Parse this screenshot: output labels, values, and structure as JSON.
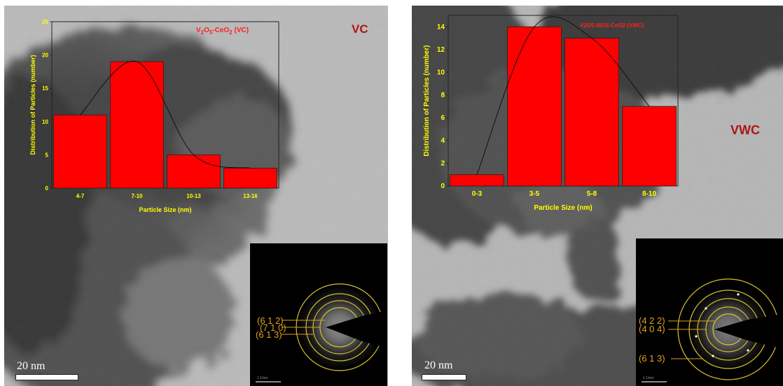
{
  "chart_data": [
    {
      "type": "bar",
      "title": "V2O5-CeO2 (VC)",
      "title_parts": {
        "base": "V",
        "s1": "2",
        "mid": "O",
        "s2": "5",
        "tail": "-CeO",
        "s3": "2",
        "end": " (VC)"
      },
      "categories": [
        "4-7",
        "7-10",
        "10-13",
        "13-16"
      ],
      "values": [
        11,
        19,
        5,
        3
      ],
      "xlabel": "Particle Size (nm)",
      "ylabel": "Distribution of Particles (number)",
      "ylim": [
        0,
        25
      ],
      "yticks": [
        "0",
        "5",
        "10",
        "15",
        "20",
        "25"
      ],
      "fit_curve": "gaussian",
      "bar_color": "#ff0000",
      "text_color": "#ffff00"
    },
    {
      "type": "bar",
      "title": "V2O5-WO3-CeO2 (VWC)",
      "categories": [
        "0-3",
        "3-5",
        "5-8",
        "8-10"
      ],
      "values": [
        1,
        14,
        13,
        7
      ],
      "xlabel": "Particle Size (nm)",
      "ylabel": "Distribution of Particles (number)",
      "ylim": [
        0,
        15
      ],
      "yticks": [
        "0",
        "2",
        "4",
        "6",
        "8",
        "10",
        "12",
        "14"
      ],
      "fit_curve": "gaussian",
      "bar_color": "#ff0000",
      "text_color": "#ffff00"
    }
  ],
  "panels": {
    "left": {
      "sample_label": "VC",
      "scale_text": "20 nm",
      "saed_labels": [
        "(6 1 2)",
        "(7 1 0)",
        "(6 1 3)"
      ],
      "saed_scale": "1 1/nm"
    },
    "right": {
      "sample_label": "VWC",
      "scale_text": "20 nm",
      "saed_labels": [
        "(4 2 2)",
        "(4 0 4)",
        "(6 1 3)"
      ],
      "saed_scale": "1 1/nm"
    }
  },
  "colors": {
    "label_red": "#b01515",
    "saed_ring": "#d8c030",
    "saed_label": "#e0a020"
  }
}
